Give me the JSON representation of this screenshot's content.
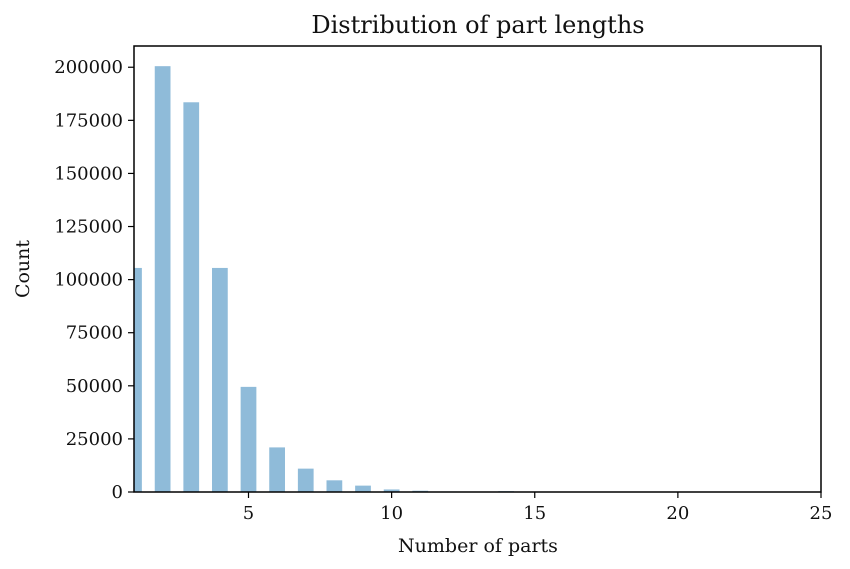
{
  "chart_data": {
    "type": "bar",
    "title": "Distribution of part lengths",
    "xlabel": "Number of parts",
    "ylabel": "Count",
    "x": [
      1,
      2,
      3,
      4,
      5,
      6,
      7,
      8,
      9,
      10,
      11,
      12,
      13,
      14,
      15,
      16
    ],
    "values": [
      105500,
      200500,
      183500,
      105500,
      49500,
      21000,
      11000,
      5500,
      3000,
      1200,
      600,
      250,
      150,
      400,
      100,
      50
    ],
    "xlim": [
      1,
      25
    ],
    "ylim": [
      0,
      210000
    ],
    "xticks": [
      5,
      10,
      15,
      20,
      25
    ],
    "yticks": [
      0,
      25000,
      50000,
      75000,
      100000,
      125000,
      150000,
      175000,
      200000
    ],
    "bar_color": "#8fbbd9",
    "grid": false
  }
}
